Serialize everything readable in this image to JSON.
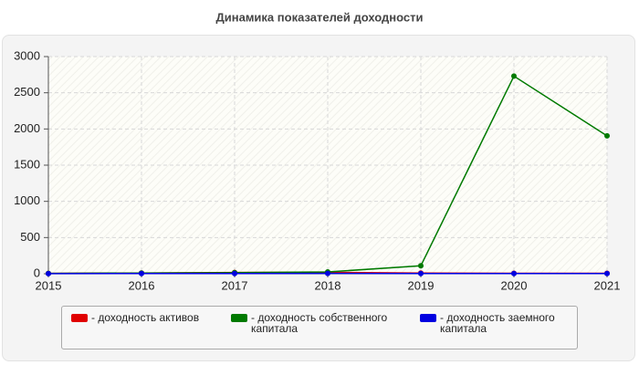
{
  "chart_data": {
    "type": "line",
    "title": "Динамика показателей доходности",
    "x": [
      2015,
      2016,
      2017,
      2018,
      2019,
      2020,
      2021
    ],
    "xlim": [
      2015,
      2021
    ],
    "xticks": [
      2015,
      2016,
      2017,
      2018,
      2019,
      2020,
      2021
    ],
    "ylim": [
      0,
      3000
    ],
    "yticks": [
      0,
      500,
      1000,
      1500,
      2000,
      2500,
      3000
    ],
    "grid": true,
    "series": [
      {
        "name": "- доходность активов",
        "color": "#e00000",
        "values": [
          5,
          10,
          18,
          20,
          10,
          6,
          6
        ]
      },
      {
        "name": "- доходность собственного капитала",
        "color": "#007a00",
        "values": [
          5,
          10,
          15,
          25,
          110,
          2730,
          1905
        ]
      },
      {
        "name": "- доходность заемного капитала",
        "color": "#0000e0",
        "values": [
          2,
          3,
          3,
          5,
          3,
          3,
          3
        ]
      }
    ]
  }
}
